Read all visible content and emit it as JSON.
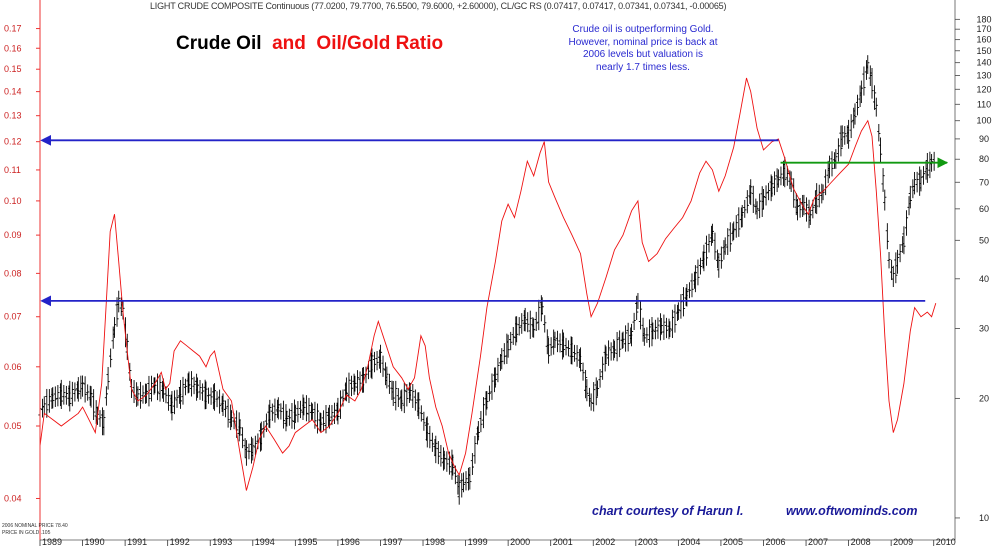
{
  "header": {
    "line": "LIGHT CRUDE COMPOSITE Continuous (77.0200, 79.7700, 76.5500, 79.6000, +2.60000), CL/GC RS (0.07417, 0.07417, 0.07341, 0.07341, -0.00065)"
  },
  "title": {
    "part1": "Crude Oil",
    "part2": "and",
    "part3": "Oil/Gold Ratio"
  },
  "annotation": "Crude oil is outperforming Gold. However, nominal price is back at 2006 levels but valuation is nearly 1.7 times less.",
  "credits": {
    "left": "chart courtesy of Harun I.",
    "right": "www.oftwominds.com"
  },
  "footnote": {
    "line1": "2006 NOMINAL PRICE 78.40",
    "line2": "PRICE IN GOLD .105"
  },
  "colors": {
    "ratio": "#ee1111",
    "price": "#000000",
    "blue_line": "#2323c8",
    "green_line": "#119911",
    "left_axis": "#ee3333"
  },
  "chart_data": {
    "type": "line",
    "x_axis": {
      "labels": [
        "1989",
        "1990",
        "1991",
        "1992",
        "1993",
        "1994",
        "1995",
        "1996",
        "1997",
        "1998",
        "1999",
        "2000",
        "2001",
        "2002",
        "2003",
        "2004",
        "2005",
        "2006",
        "2007",
        "2008",
        "2009",
        "2010"
      ],
      "range": [
        1989.0,
        2010.5
      ]
    },
    "left_axis": {
      "scale": "log",
      "range": [
        0.0352,
        0.18
      ],
      "ticks": [
        "0.04",
        "0.05",
        "0.06",
        "0.07",
        "0.08",
        "0.09",
        "0.10",
        "0.11",
        "0.12",
        "0.13",
        "0.14",
        "0.15",
        "0.16",
        "0.17"
      ]
    },
    "right_axis": {
      "scale": "log",
      "range": [
        8.8,
        190
      ],
      "ticks": [
        "10",
        "20",
        "30",
        "40",
        "50",
        "60",
        "70",
        "80",
        "90",
        "100",
        "110",
        "120",
        "130",
        "140",
        "150",
        "160",
        "170",
        "180"
      ]
    },
    "series": [
      {
        "axis": "left",
        "style": "line",
        "points": [
          [
            1989.0,
            0.047
          ],
          [
            1989.1,
            0.052
          ],
          [
            1989.3,
            0.051
          ],
          [
            1989.5,
            0.05
          ],
          [
            1989.7,
            0.051
          ],
          [
            1989.9,
            0.052
          ],
          [
            1990.0,
            0.053
          ],
          [
            1990.15,
            0.051
          ],
          [
            1990.3,
            0.049
          ],
          [
            1990.45,
            0.057
          ],
          [
            1990.55,
            0.072
          ],
          [
            1990.65,
            0.091
          ],
          [
            1990.75,
            0.096
          ],
          [
            1990.85,
            0.083
          ],
          [
            1990.95,
            0.071
          ],
          [
            1991.05,
            0.063
          ],
          [
            1991.15,
            0.056
          ],
          [
            1991.3,
            0.054
          ],
          [
            1991.5,
            0.055
          ],
          [
            1991.7,
            0.057
          ],
          [
            1991.85,
            0.059
          ],
          [
            1991.95,
            0.056
          ],
          [
            1992.05,
            0.057
          ],
          [
            1992.15,
            0.063
          ],
          [
            1992.3,
            0.065
          ],
          [
            1992.45,
            0.064
          ],
          [
            1992.6,
            0.063
          ],
          [
            1992.75,
            0.062
          ],
          [
            1992.9,
            0.06
          ],
          [
            1993.0,
            0.062
          ],
          [
            1993.1,
            0.063
          ],
          [
            1993.3,
            0.056
          ],
          [
            1993.5,
            0.054
          ],
          [
            1993.7,
            0.046
          ],
          [
            1993.85,
            0.041
          ],
          [
            1994.0,
            0.044
          ],
          [
            1994.15,
            0.048
          ],
          [
            1994.3,
            0.05
          ],
          [
            1994.5,
            0.048
          ],
          [
            1994.7,
            0.046
          ],
          [
            1994.85,
            0.047
          ],
          [
            1995.0,
            0.049
          ],
          [
            1995.2,
            0.05
          ],
          [
            1995.4,
            0.051
          ],
          [
            1995.6,
            0.049
          ],
          [
            1995.8,
            0.05
          ],
          [
            1996.0,
            0.052
          ],
          [
            1996.2,
            0.055
          ],
          [
            1996.4,
            0.054
          ],
          [
            1996.55,
            0.056
          ],
          [
            1996.7,
            0.06
          ],
          [
            1996.85,
            0.066
          ],
          [
            1996.95,
            0.069
          ],
          [
            1997.1,
            0.065
          ],
          [
            1997.3,
            0.06
          ],
          [
            1997.5,
            0.058
          ],
          [
            1997.65,
            0.056
          ],
          [
            1997.8,
            0.058
          ],
          [
            1997.95,
            0.066
          ],
          [
            1998.05,
            0.064
          ],
          [
            1998.15,
            0.058
          ],
          [
            1998.3,
            0.053
          ],
          [
            1998.45,
            0.05
          ],
          [
            1998.6,
            0.046
          ],
          [
            1998.75,
            0.044
          ],
          [
            1998.85,
            0.043
          ],
          [
            1999.0,
            0.046
          ],
          [
            1999.15,
            0.052
          ],
          [
            1999.35,
            0.062
          ],
          [
            1999.5,
            0.072
          ],
          [
            1999.7,
            0.083
          ],
          [
            1999.85,
            0.094
          ],
          [
            2000.0,
            0.099
          ],
          [
            2000.15,
            0.095
          ],
          [
            2000.3,
            0.103
          ],
          [
            2000.45,
            0.113
          ],
          [
            2000.6,
            0.108
          ],
          [
            2000.75,
            0.116
          ],
          [
            2000.85,
            0.12
          ],
          [
            2000.95,
            0.106
          ],
          [
            2001.1,
            0.101
          ],
          [
            2001.3,
            0.095
          ],
          [
            2001.5,
            0.09
          ],
          [
            2001.7,
            0.085
          ],
          [
            2001.85,
            0.075
          ],
          [
            2001.95,
            0.07
          ],
          [
            2002.1,
            0.073
          ],
          [
            2002.3,
            0.079
          ],
          [
            2002.5,
            0.086
          ],
          [
            2002.7,
            0.09
          ],
          [
            2002.9,
            0.097
          ],
          [
            2003.05,
            0.1
          ],
          [
            2003.15,
            0.088
          ],
          [
            2003.3,
            0.083
          ],
          [
            2003.5,
            0.085
          ],
          [
            2003.7,
            0.089
          ],
          [
            2003.9,
            0.092
          ],
          [
            2004.1,
            0.095
          ],
          [
            2004.3,
            0.1
          ],
          [
            2004.5,
            0.109
          ],
          [
            2004.65,
            0.113
          ],
          [
            2004.8,
            0.11
          ],
          [
            2004.95,
            0.103
          ],
          [
            2005.1,
            0.108
          ],
          [
            2005.3,
            0.118
          ],
          [
            2005.45,
            0.131
          ],
          [
            2005.6,
            0.146
          ],
          [
            2005.7,
            0.14
          ],
          [
            2005.85,
            0.125
          ],
          [
            2006.0,
            0.117
          ],
          [
            2006.2,
            0.12
          ],
          [
            2006.35,
            0.121
          ],
          [
            2006.5,
            0.114
          ],
          [
            2006.7,
            0.104
          ],
          [
            2006.9,
            0.099
          ],
          [
            2007.05,
            0.096
          ],
          [
            2007.2,
            0.101
          ],
          [
            2007.4,
            0.103
          ],
          [
            2007.6,
            0.106
          ],
          [
            2007.8,
            0.109
          ],
          [
            2008.0,
            0.112
          ],
          [
            2008.15,
            0.118
          ],
          [
            2008.3,
            0.124
          ],
          [
            2008.45,
            0.128
          ],
          [
            2008.55,
            0.122
          ],
          [
            2008.65,
            0.103
          ],
          [
            2008.75,
            0.085
          ],
          [
            2008.85,
            0.066
          ],
          [
            2008.95,
            0.054
          ],
          [
            2009.05,
            0.049
          ],
          [
            2009.15,
            0.051
          ],
          [
            2009.3,
            0.057
          ],
          [
            2009.45,
            0.067
          ],
          [
            2009.55,
            0.072
          ],
          [
            2009.7,
            0.07
          ],
          [
            2009.85,
            0.071
          ],
          [
            2009.95,
            0.07
          ],
          [
            2010.05,
            0.073
          ]
        ]
      },
      {
        "axis": "right",
        "style": "ohlc",
        "points": [
          [
            1989.0,
            18.5
          ],
          [
            1989.1,
            19.2
          ],
          [
            1989.3,
            20.1
          ],
          [
            1989.5,
            20.5
          ],
          [
            1989.7,
            20.3
          ],
          [
            1989.9,
            21.1
          ],
          [
            1990.0,
            21.5
          ],
          [
            1990.2,
            20.2
          ],
          [
            1990.35,
            18.1
          ],
          [
            1990.5,
            17.4
          ],
          [
            1990.6,
            22.5
          ],
          [
            1990.75,
            30.2
          ],
          [
            1990.85,
            35.1
          ],
          [
            1990.95,
            33.4
          ],
          [
            1991.05,
            27.0
          ],
          [
            1991.15,
            21.2
          ],
          [
            1991.3,
            20.3
          ],
          [
            1991.5,
            20.6
          ],
          [
            1991.7,
            21.6
          ],
          [
            1991.9,
            21.0
          ],
          [
            1992.1,
            19.2
          ],
          [
            1992.3,
            20.5
          ],
          [
            1992.5,
            22.0
          ],
          [
            1992.7,
            21.3
          ],
          [
            1992.9,
            20.4
          ],
          [
            1993.1,
            20.2
          ],
          [
            1993.3,
            19.3
          ],
          [
            1993.5,
            17.8
          ],
          [
            1993.7,
            16.9
          ],
          [
            1993.85,
            14.6
          ],
          [
            1994.0,
            14.9
          ],
          [
            1994.2,
            16.1
          ],
          [
            1994.4,
            18.3
          ],
          [
            1994.6,
            18.9
          ],
          [
            1994.8,
            17.8
          ],
          [
            1995.0,
            18.3
          ],
          [
            1995.2,
            19.1
          ],
          [
            1995.4,
            18.5
          ],
          [
            1995.6,
            17.4
          ],
          [
            1995.8,
            18.0
          ],
          [
            1996.0,
            18.6
          ],
          [
            1996.2,
            21.1
          ],
          [
            1996.4,
            21.8
          ],
          [
            1996.6,
            22.3
          ],
          [
            1996.8,
            24.5
          ],
          [
            1997.0,
            25.2
          ],
          [
            1997.15,
            22.6
          ],
          [
            1997.3,
            20.6
          ],
          [
            1997.5,
            19.8
          ],
          [
            1997.7,
            20.8
          ],
          [
            1997.9,
            19.2
          ],
          [
            1998.1,
            16.5
          ],
          [
            1998.3,
            14.9
          ],
          [
            1998.5,
            14.0
          ],
          [
            1998.7,
            13.6
          ],
          [
            1998.85,
            11.8
          ],
          [
            1998.95,
            12.3
          ],
          [
            1999.1,
            12.6
          ],
          [
            1999.3,
            16.6
          ],
          [
            1999.5,
            19.8
          ],
          [
            1999.7,
            22.6
          ],
          [
            1999.85,
            25.2
          ],
          [
            2000.0,
            27.1
          ],
          [
            2000.2,
            29.9
          ],
          [
            2000.4,
            31.6
          ],
          [
            2000.6,
            30.1
          ],
          [
            2000.8,
            34.2
          ],
          [
            2000.95,
            26.4
          ],
          [
            2001.1,
            28.1
          ],
          [
            2001.3,
            27.3
          ],
          [
            2001.5,
            26.4
          ],
          [
            2001.7,
            25.1
          ],
          [
            2001.85,
            21.0
          ],
          [
            2001.95,
            19.6
          ],
          [
            2002.1,
            21.2
          ],
          [
            2002.3,
            25.8
          ],
          [
            2002.5,
            26.6
          ],
          [
            2002.7,
            28.1
          ],
          [
            2002.9,
            28.9
          ],
          [
            2003.05,
            35.2
          ],
          [
            2003.2,
            28.6
          ],
          [
            2003.4,
            29.6
          ],
          [
            2003.6,
            30.4
          ],
          [
            2003.8,
            29.9
          ],
          [
            2004.0,
            33.2
          ],
          [
            2004.2,
            36.4
          ],
          [
            2004.4,
            40.1
          ],
          [
            2004.6,
            45.2
          ],
          [
            2004.8,
            52.1
          ],
          [
            2004.95,
            43.3
          ],
          [
            2005.1,
            48.4
          ],
          [
            2005.3,
            52.9
          ],
          [
            2005.5,
            57.6
          ],
          [
            2005.7,
            66.2
          ],
          [
            2005.85,
            59.6
          ],
          [
            2006.0,
            63.5
          ],
          [
            2006.2,
            68.4
          ],
          [
            2006.35,
            71.6
          ],
          [
            2006.5,
            74.4
          ],
          [
            2006.65,
            70.3
          ],
          [
            2006.8,
            59.8
          ],
          [
            2006.95,
            61.4
          ],
          [
            2007.1,
            57.6
          ],
          [
            2007.25,
            63.8
          ],
          [
            2007.4,
            66.1
          ],
          [
            2007.55,
            76.6
          ],
          [
            2007.7,
            80.2
          ],
          [
            2007.85,
            91.5
          ],
          [
            2008.0,
            92.6
          ],
          [
            2008.15,
            104.1
          ],
          [
            2008.3,
            118.4
          ],
          [
            2008.45,
            138.6
          ],
          [
            2008.55,
            124.5
          ],
          [
            2008.65,
            108.3
          ],
          [
            2008.75,
            84.6
          ],
          [
            2008.85,
            63.2
          ],
          [
            2008.95,
            44.6
          ],
          [
            2009.05,
            40.6
          ],
          [
            2009.15,
            44.2
          ],
          [
            2009.3,
            50.1
          ],
          [
            2009.45,
            64.3
          ],
          [
            2009.55,
            69.7
          ],
          [
            2009.7,
            70.8
          ],
          [
            2009.85,
            76.2
          ],
          [
            2009.95,
            78.4
          ],
          [
            2010.05,
            79.6
          ]
        ]
      }
    ],
    "reference_lines": [
      {
        "axis": "left",
        "value": 0.1205,
        "x": [
          1989.0,
          2006.35
        ],
        "color": "#2323c8"
      },
      {
        "axis": "left",
        "value": 0.0735,
        "x": [
          1989.0,
          2009.8
        ],
        "color": "#2323c8"
      },
      {
        "axis": "right",
        "value": 78.4,
        "x": [
          2006.4,
          2010.55
        ],
        "color": "#119911"
      }
    ]
  }
}
